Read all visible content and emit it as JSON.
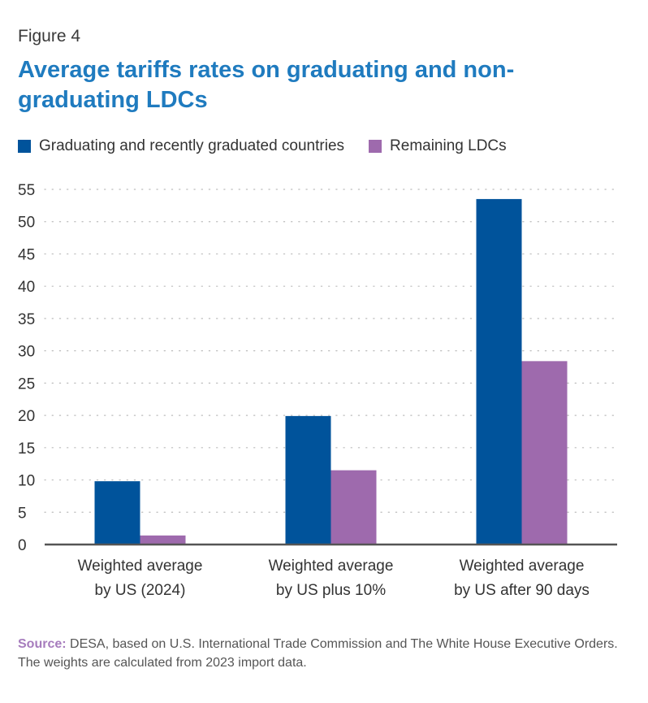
{
  "figure_label": "Figure 4",
  "title": "Average tariffs rates on graduating and non-graduating LDCs",
  "source": {
    "label": "Source:",
    "text": "DESA, based on U.S. International Trade Commission and The White House Executive Orders. The weights are calculated from 2023 import data."
  },
  "colors": {
    "graduating": "#00539b",
    "remaining": "#9e6aad",
    "title": "#1f7bbf",
    "grid": "#bbbbbb",
    "axis": "#555555"
  },
  "chart_data": {
    "type": "bar",
    "categories": [
      [
        "Weighted average",
        "by US (2024)"
      ],
      [
        "Weighted average",
        "by US plus 10%"
      ],
      [
        "Weighted average",
        "by US after 90 days"
      ]
    ],
    "series": [
      {
        "name": "Graduating and recently graduated countries",
        "values": [
          9.8,
          19.9,
          53.5
        ]
      },
      {
        "name": "Remaining LDCs",
        "values": [
          1.4,
          11.5,
          28.4
        ]
      }
    ],
    "yticks": [
      0,
      5,
      10,
      15,
      20,
      25,
      30,
      35,
      40,
      45,
      50,
      55
    ],
    "ylim": [
      0,
      55
    ],
    "grid": true,
    "legend": "top-left"
  }
}
